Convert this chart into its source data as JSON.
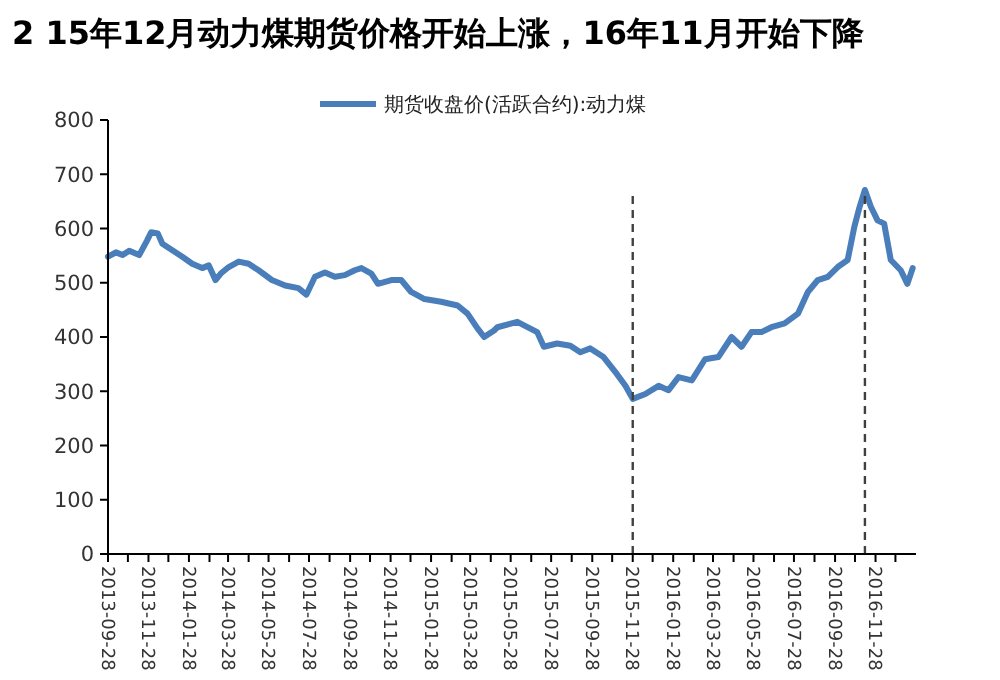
{
  "chart_data": {
    "type": "line",
    "title": "2 15年12月动力煤期货价格开始上涨，16年11月开始下降",
    "x": [
      "2013-09-28",
      "2013-10-10",
      "2013-10-20",
      "2013-10-30",
      "2013-11-14",
      "2013-11-26",
      "2013-12-02",
      "2013-12-12",
      "2013-12-19",
      "2014-01-03",
      "2014-01-18",
      "2014-02-02",
      "2014-02-17",
      "2014-02-27",
      "2014-03-09",
      "2014-03-17",
      "2014-03-29",
      "2014-04-13",
      "2014-04-28",
      "2014-05-13",
      "2014-06-02",
      "2014-06-22",
      "2014-07-12",
      "2014-07-24",
      "2014-08-06",
      "2014-08-21",
      "2014-09-05",
      "2014-09-20",
      "2014-10-05",
      "2014-10-15",
      "2014-10-30",
      "2014-11-09",
      "2014-11-29",
      "2014-12-14",
      "2014-12-29",
      "2015-01-18",
      "2015-02-12",
      "2015-03-09",
      "2015-03-24",
      "2015-04-08",
      "2015-04-18",
      "2015-05-03",
      "2015-05-08",
      "2015-06-07",
      "2015-07-07",
      "2015-07-17",
      "2015-08-06",
      "2015-08-26",
      "2015-09-10",
      "2015-09-25",
      "2015-10-15",
      "2015-11-04",
      "2015-11-17",
      "2015-11-28",
      "2015-12-17",
      "2016-01-06",
      "2016-01-21",
      "2016-02-05",
      "2016-02-25",
      "2016-03-16",
      "2016-04-05",
      "2016-04-25",
      "2016-05-10",
      "2016-05-25",
      "2016-06-09",
      "2016-06-24",
      "2016-07-14",
      "2016-08-03",
      "2016-08-18",
      "2016-09-02",
      "2016-09-17",
      "2016-10-02",
      "2016-10-17",
      "2016-10-27",
      "2016-11-04",
      "2016-11-12",
      "2016-11-21",
      "2016-12-01",
      "2016-12-11",
      "2016-12-21",
      "2017-01-05",
      "2017-01-15",
      "2017-01-23"
    ],
    "series": [
      {
        "name": "期货收盘价(活跃合约):动力煤",
        "color": "#4a7ebb",
        "values": [
          548,
          556,
          551,
          559,
          551,
          578,
          593,
          591,
          572,
          560,
          548,
          535,
          527,
          532,
          505,
          517,
          529,
          539,
          535,
          523,
          505,
          495,
          490,
          478,
          511,
          519,
          511,
          514,
          523,
          527,
          517,
          498,
          505,
          505,
          483,
          470,
          465,
          458,
          443,
          416,
          400,
          412,
          418,
          428,
          409,
          382,
          388,
          384,
          372,
          379,
          363,
          332,
          310,
          286,
          295,
          310,
          302,
          326,
          320,
          359,
          363,
          400,
          382,
          409,
          409,
          418,
          425,
          443,
          483,
          505,
          511,
          529,
          542,
          603,
          640,
          671,
          640,
          615,
          609,
          542,
          523,
          498,
          527
        ]
      }
    ],
    "xlim": [
      "2013-09-28",
      "2017-01-28"
    ],
    "xticks": [
      {
        "value": "2013-09-28",
        "label": "2013-09-28"
      },
      {
        "value": "2013-10-28",
        "label": null
      },
      {
        "value": "2013-11-28",
        "label": "2013-11-28"
      },
      {
        "value": "2013-12-28",
        "label": null
      },
      {
        "value": "2014-01-28",
        "label": "2014-01-28"
      },
      {
        "value": "2014-02-28",
        "label": null
      },
      {
        "value": "2014-03-28",
        "label": "2014-03-28"
      },
      {
        "value": "2014-04-28",
        "label": null
      },
      {
        "value": "2014-05-28",
        "label": "2014-05-28"
      },
      {
        "value": "2014-06-28",
        "label": null
      },
      {
        "value": "2014-07-28",
        "label": "2014-07-28"
      },
      {
        "value": "2014-08-28",
        "label": null
      },
      {
        "value": "2014-09-28",
        "label": "2014-09-28"
      },
      {
        "value": "2014-10-28",
        "label": null
      },
      {
        "value": "2014-11-28",
        "label": "2014-11-28"
      },
      {
        "value": "2014-12-28",
        "label": null
      },
      {
        "value": "2015-01-28",
        "label": "2015-01-28"
      },
      {
        "value": "2015-02-28",
        "label": null
      },
      {
        "value": "2015-03-28",
        "label": "2015-03-28"
      },
      {
        "value": "2015-04-28",
        "label": null
      },
      {
        "value": "2015-05-28",
        "label": "2015-05-28"
      },
      {
        "value": "2015-06-28",
        "label": null
      },
      {
        "value": "2015-07-28",
        "label": "2015-07-28"
      },
      {
        "value": "2015-08-28",
        "label": null
      },
      {
        "value": "2015-09-28",
        "label": "2015-09-28"
      },
      {
        "value": "2015-10-28",
        "label": null
      },
      {
        "value": "2015-11-28",
        "label": "2015-11-28"
      },
      {
        "value": "2015-12-28",
        "label": null
      },
      {
        "value": "2016-01-28",
        "label": "2016-01-28"
      },
      {
        "value": "2016-02-28",
        "label": null
      },
      {
        "value": "2016-03-28",
        "label": "2016-03-28"
      },
      {
        "value": "2016-04-28",
        "label": null
      },
      {
        "value": "2016-05-28",
        "label": "2016-05-28"
      },
      {
        "value": "2016-06-28",
        "label": null
      },
      {
        "value": "2016-07-28",
        "label": "2016-07-28"
      },
      {
        "value": "2016-08-28",
        "label": null
      },
      {
        "value": "2016-09-28",
        "label": "2016-09-28"
      },
      {
        "value": "2016-10-28",
        "label": null
      },
      {
        "value": "2016-11-28",
        "label": "2016-11-28"
      },
      {
        "value": "2016-12-28",
        "label": null
      }
    ],
    "ylim": [
      0,
      800
    ],
    "yticks": [
      0,
      100,
      200,
      300,
      400,
      500,
      600,
      700,
      800
    ],
    "ref_lines": [
      {
        "axis": "x",
        "value": "2015-11-28",
        "color": "#404040",
        "line_style": "dashed"
      },
      {
        "axis": "x",
        "value": "2016-11-12",
        "color": "#404040",
        "line_style": "dashed"
      }
    ],
    "legend": "top",
    "grid": false,
    "line_style": "solid",
    "marker": "none"
  }
}
